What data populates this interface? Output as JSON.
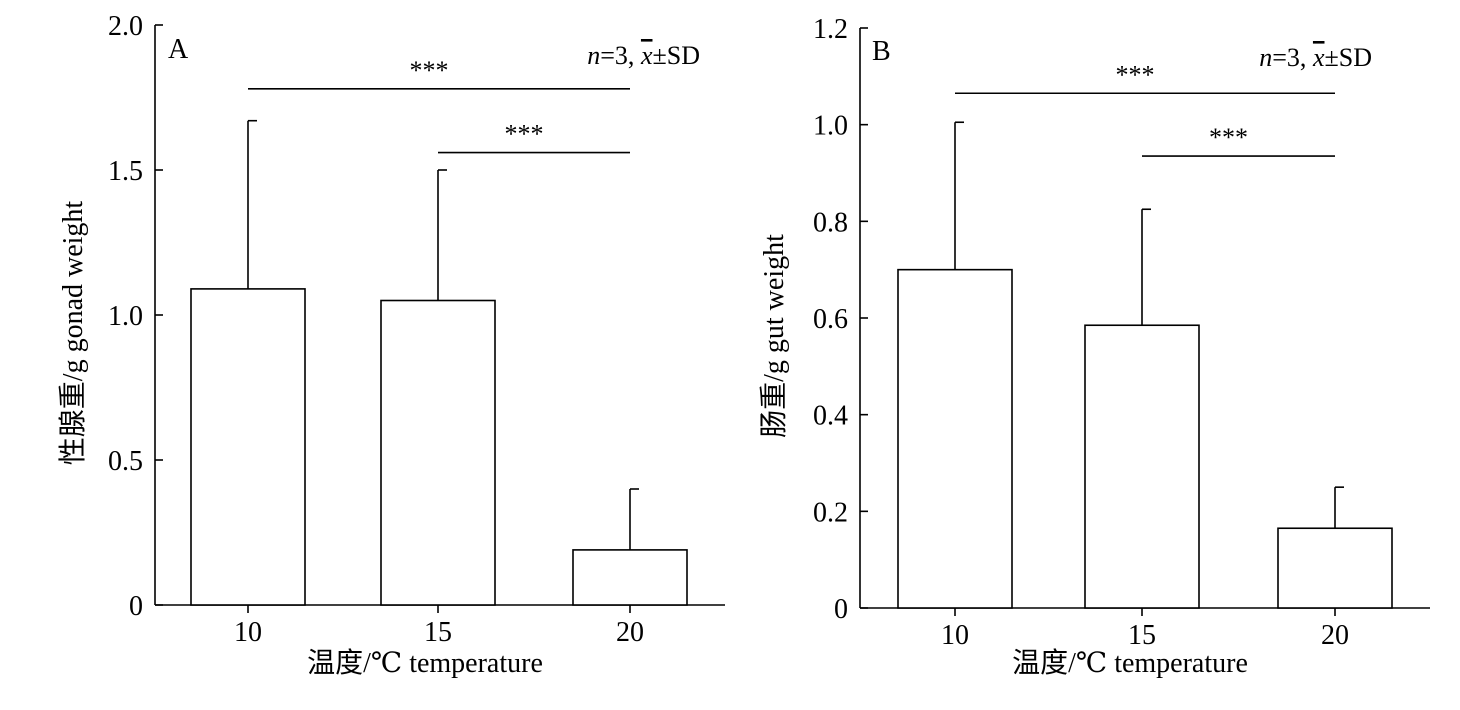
{
  "chart_data": [
    {
      "type": "bar",
      "panel": "A",
      "annotation": "n=3, x̄±SD",
      "annotation_parts": {
        "n_label": "n",
        "n_rest": "=3, ",
        "x_label": "x",
        "x_rest": "±SD"
      },
      "xlabel": "温度/℃ temperature",
      "ylabel": "性腺重/g gonad weight",
      "categories": [
        "10",
        "15",
        "20"
      ],
      "values": [
        1.09,
        1.05,
        0.19
      ],
      "errors": [
        0.58,
        0.45,
        0.21
      ],
      "ylim": [
        0,
        2.0
      ],
      "yticks": [
        0,
        0.5,
        1.0,
        1.5,
        2.0
      ],
      "ytick_labels": [
        "0",
        "0.5",
        "1.0",
        "1.5",
        "2.0"
      ],
      "significance": [
        {
          "from": "10",
          "to": "20",
          "label": "***",
          "y": 1.78
        },
        {
          "from": "15",
          "to": "20",
          "label": "***",
          "y": 1.56
        }
      ],
      "grid": false,
      "legend": "none"
    },
    {
      "type": "bar",
      "panel": "B",
      "annotation": "n=3, x̄±SD",
      "annotation_parts": {
        "n_label": "n",
        "n_rest": "=3, ",
        "x_label": "x",
        "x_rest": "±SD"
      },
      "xlabel": "温度/℃ temperature",
      "ylabel": "肠重/g gut weight",
      "categories": [
        "10",
        "15",
        "20"
      ],
      "values": [
        0.7,
        0.585,
        0.165
      ],
      "errors": [
        0.305,
        0.24,
        0.085
      ],
      "ylim": [
        0,
        1.2
      ],
      "yticks": [
        0,
        0.2,
        0.4,
        0.6,
        0.8,
        1.0,
        1.2
      ],
      "ytick_labels": [
        "0",
        "0.2",
        "0.4",
        "0.6",
        "0.8",
        "1.0",
        "1.2"
      ],
      "significance": [
        {
          "from": "10",
          "to": "20",
          "label": "***",
          "y": 1.065
        },
        {
          "from": "15",
          "to": "20",
          "label": "***",
          "y": 0.935
        }
      ],
      "grid": false,
      "legend": "none"
    }
  ]
}
